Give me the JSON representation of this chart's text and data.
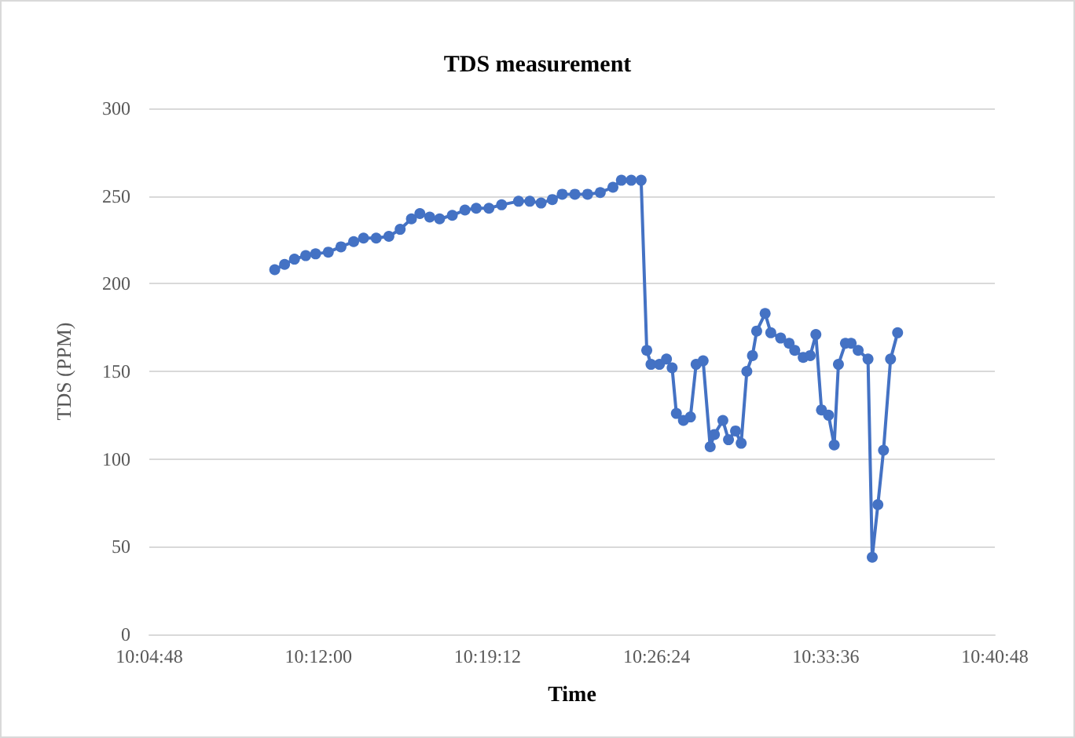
{
  "chart_data": {
    "type": "line",
    "title": "TDS measurement",
    "xlabel": "Time",
    "ylabel": "TDS (PPM)",
    "x": [
      10.169,
      10.176,
      10.183,
      10.191,
      10.198,
      10.207,
      10.216,
      10.225,
      10.232,
      10.241,
      10.25,
      10.258,
      10.266,
      10.272,
      10.279,
      10.286,
      10.295,
      10.304,
      10.312,
      10.321,
      10.33,
      10.342,
      10.35,
      10.358,
      10.366,
      10.373,
      10.382,
      10.391,
      10.4,
      10.409,
      10.415,
      10.422,
      10.429,
      10.433,
      10.436,
      10.442,
      10.447,
      10.451,
      10.454,
      10.459,
      10.464,
      10.468,
      10.473,
      10.478,
      10.481,
      10.487,
      10.491,
      10.496,
      10.5,
      10.504,
      10.508,
      10.511,
      10.517,
      10.521,
      10.528,
      10.534,
      10.538,
      10.544,
      10.549,
      10.553,
      10.557,
      10.562,
      10.566,
      10.569,
      10.574,
      10.578,
      10.583,
      10.59,
      10.593,
      10.597,
      10.601,
      10.606,
      10.611
    ],
    "series": [
      {
        "color": "#4472c4",
        "values": [
          208,
          211,
          214,
          216,
          217,
          218,
          221,
          224,
          226,
          226,
          227,
          231,
          237,
          240,
          238,
          237,
          239,
          242,
          243,
          243,
          245,
          247,
          247,
          246,
          248,
          251,
          251,
          251,
          252,
          255,
          259,
          259,
          259,
          162,
          154,
          154,
          157,
          152,
          126,
          122,
          124,
          154,
          156,
          107,
          114,
          122,
          111,
          116,
          109,
          150,
          159,
          173,
          183,
          172,
          169,
          166,
          162,
          158,
          159,
          171,
          128,
          125,
          108,
          154,
          166,
          166,
          162,
          157,
          44,
          74,
          105,
          157,
          172
        ]
      }
    ],
    "xlim": [
      10.08,
      10.68
    ],
    "xticks": [
      {
        "value": 10.08,
        "label": "10:04:48"
      },
      {
        "value": 10.2,
        "label": "10:12:00"
      },
      {
        "value": 10.32,
        "label": "10:19:12"
      },
      {
        "value": 10.44,
        "label": "10:26:24"
      },
      {
        "value": 10.56,
        "label": "10:33:36"
      },
      {
        "value": 10.68,
        "label": "10:40:48"
      }
    ],
    "ylim": [
      0,
      300
    ],
    "yticks": [
      0,
      50,
      100,
      150,
      200,
      250,
      300
    ],
    "grid": "y",
    "marker": "circle",
    "line_style": "solid"
  }
}
